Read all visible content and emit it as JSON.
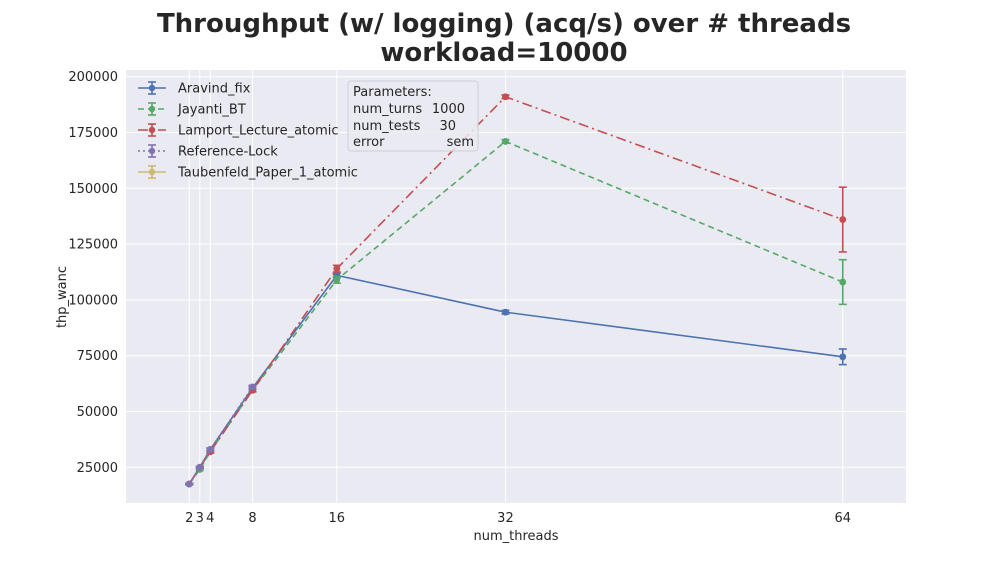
{
  "chart_data": {
    "type": "line",
    "title_line1": "Throughput (w/ logging) (acq/s) over # threads",
    "title_line2": "workload=10000",
    "xlabel": "num_threads",
    "ylabel": "thp_wanc",
    "x_ticks": [
      2,
      3,
      4,
      8,
      16,
      32,
      64
    ],
    "y_ticks": [
      25000,
      50000,
      75000,
      100000,
      125000,
      150000,
      175000,
      200000
    ],
    "xlim": [
      -4,
      70
    ],
    "ylim": [
      9000,
      203000
    ],
    "grid": true,
    "legend_position": "top-left",
    "series": [
      {
        "name": "Aravind_fix",
        "color": "#4c72b0",
        "dash": "",
        "x": [
          2,
          3,
          4,
          8,
          16,
          32,
          64
        ],
        "y": [
          17500,
          25000,
          33000,
          60500,
          111000,
          94500,
          74500
        ],
        "err": [
          300,
          400,
          600,
          700,
          1000,
          800,
          3500
        ]
      },
      {
        "name": "Jayanti_BT",
        "color": "#55a868",
        "dash": "6,4",
        "x": [
          2,
          3,
          4,
          8,
          16,
          32,
          64
        ],
        "y": [
          17500,
          24000,
          32000,
          59500,
          109000,
          171000,
          108000
        ],
        "err": [
          300,
          400,
          600,
          700,
          1500,
          800,
          10000
        ]
      },
      {
        "name": "Lamport_Lecture_atomic",
        "color": "#c44e52",
        "dash": "10,4,2,4",
        "x": [
          2,
          3,
          4,
          8,
          16,
          32,
          64
        ],
        "y": [
          17500,
          25000,
          32000,
          59500,
          114000,
          191000,
          136000
        ],
        "err": [
          300,
          400,
          600,
          700,
          1500,
          800,
          14500
        ]
      },
      {
        "name": "Reference-Lock",
        "color": "#8172b2",
        "dash": "2,3",
        "x": [
          2,
          3,
          4,
          8
        ],
        "y": [
          17500,
          25000,
          33000,
          61000
        ],
        "err": [
          300,
          400,
          600,
          700
        ]
      },
      {
        "name": "Taubenfeld_Paper_1_atomic",
        "color": "#ccb974",
        "dash": "",
        "x": [],
        "y": [],
        "err": []
      }
    ],
    "parameters_box": {
      "header": "Parameters:",
      "rows": [
        {
          "key": "num_turns",
          "value": "1000"
        },
        {
          "key": "num_tests",
          "value": "30"
        },
        {
          "key": "error",
          "value": "sem"
        }
      ]
    }
  }
}
